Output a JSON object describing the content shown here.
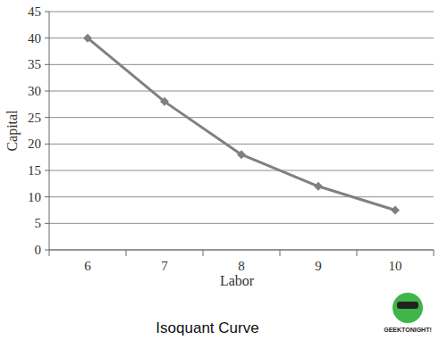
{
  "chart_data": {
    "type": "line",
    "title": "Isoquant Curve",
    "x_label": "Labor",
    "y_label": "Capital",
    "categories": [
      "6",
      "7",
      "8",
      "9",
      "10"
    ],
    "values": [
      40,
      28,
      18,
      12,
      7.5
    ],
    "color": "#808080",
    "marker": "diamond",
    "ylim": [
      0,
      45
    ],
    "yticks": [
      0,
      5,
      10,
      15,
      20,
      25,
      30,
      35,
      40,
      45
    ],
    "grid": true,
    "annotations": [
      "GEEKTONIGHT!"
    ]
  }
}
